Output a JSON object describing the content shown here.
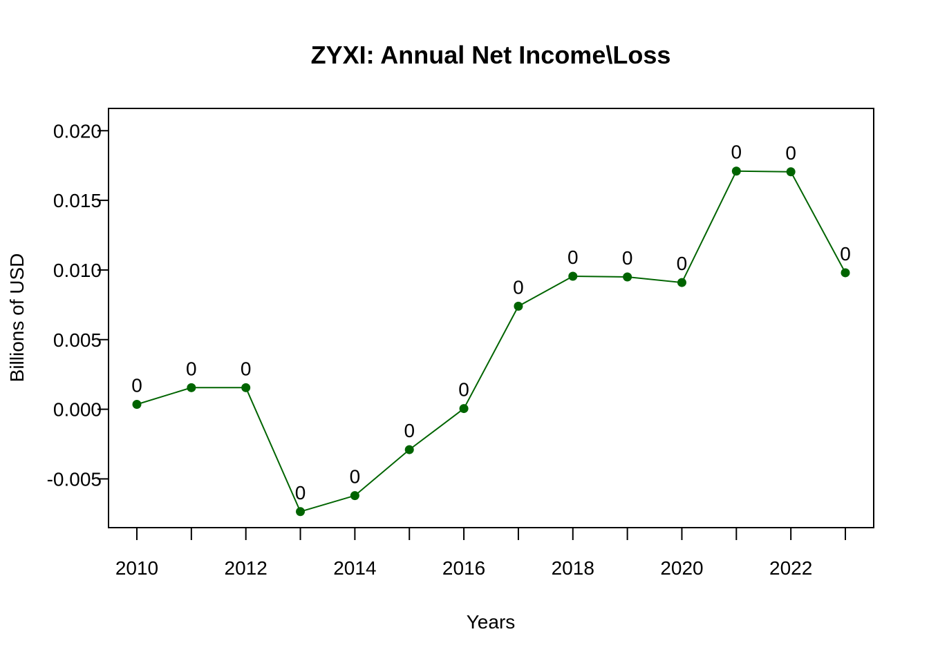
{
  "chart_data": {
    "type": "line",
    "title": "ZYXI: Annual Net Income\\Loss",
    "xlabel": "Years",
    "ylabel": "Billions of USD",
    "x": [
      2010,
      2011,
      2012,
      2013,
      2014,
      2015,
      2016,
      2017,
      2018,
      2019,
      2020,
      2021,
      2022,
      2023
    ],
    "series": [
      {
        "values": [
          0.00035,
          0.00155,
          0.00155,
          -0.00735,
          -0.0062,
          -0.0029,
          5e-05,
          0.0074,
          0.00955,
          0.0095,
          0.0091,
          0.0171,
          0.01705,
          0.0098
        ],
        "labels": [
          "0",
          "0",
          "0",
          "0",
          "0",
          "0",
          "0",
          "0",
          "0",
          "0",
          "0",
          "0",
          "0",
          "0"
        ],
        "color": "#006400"
      }
    ],
    "xlim": [
      2009.48,
      2023.52
    ],
    "ylim": [
      -0.0085,
      0.0216
    ],
    "x_ticks": [
      "2010",
      "2011",
      "2012",
      "2013",
      "2014",
      "2015",
      "2016",
      "2017",
      "2018",
      "2019",
      "2020",
      "2021",
      "2022",
      "2023"
    ],
    "x_tick_labels": [
      "2010",
      "",
      "2012",
      "",
      "2014",
      "",
      "2016",
      "",
      "2018",
      "",
      "2020",
      "",
      "2022",
      ""
    ],
    "y_ticks": [
      -0.005,
      0.0,
      0.005,
      0.01,
      0.015,
      0.02
    ],
    "y_tick_labels": [
      "-0.005",
      "0.000",
      "0.005",
      "0.010",
      "0.015",
      "0.020"
    ],
    "grid": false,
    "legend": "none"
  }
}
